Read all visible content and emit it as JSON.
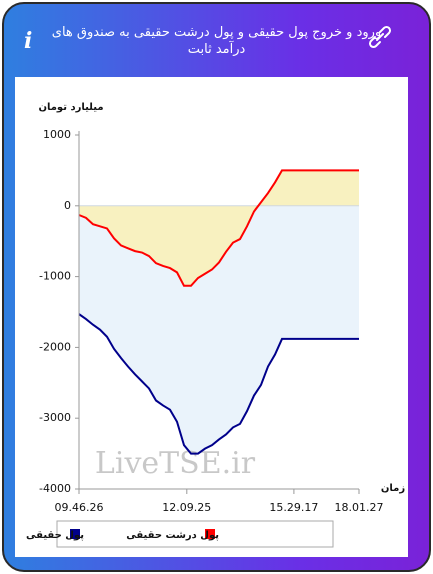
{
  "chart_data": {
    "type": "line",
    "title": "ورود و خروج پول حقیقی و پول درشت حقیقی به صندوق های درآمد ثابت",
    "ylabel": "میلیارد تومان",
    "xlabel": "زمان",
    "watermark": "LiveTSE.ir",
    "xlim": [
      0,
      40
    ],
    "xticks": [
      {
        "value": 0,
        "label": "09.46.26"
      },
      {
        "value": 15.4,
        "label": "12.09.25"
      },
      {
        "value": 30.7,
        "label": "15.29.17"
      },
      {
        "value": 40,
        "label": "18.01.27"
      }
    ],
    "ylim": [
      -4000,
      1000
    ],
    "yticks": [
      1000,
      0,
      -1000,
      -2000,
      -3000,
      -4000
    ],
    "series": [
      {
        "name": "پول حقیقی",
        "color": "#00008b",
        "fill": "#eaf3fb",
        "values": [
          -1530,
          -1600,
          -1680,
          -1750,
          -1850,
          -2020,
          -2150,
          -2270,
          -2380,
          -2480,
          -2580,
          -2750,
          -2820,
          -2880,
          -3050,
          -3380,
          -3500,
          -3500,
          -3430,
          -3380,
          -3300,
          -3230,
          -3130,
          -3080,
          -2900,
          -2680,
          -2530,
          -2270,
          -2100,
          -1880,
          -1880,
          -1880,
          -1880,
          -1880,
          -1880,
          -1880,
          -1880,
          -1880,
          -1880,
          -1880,
          -1880
        ]
      },
      {
        "name": "پول درشت حقیقی",
        "color": "#ff0000",
        "fill": "#f8f1c0",
        "values": [
          -130,
          -170,
          -260,
          -290,
          -320,
          -460,
          -560,
          -600,
          -640,
          -660,
          -710,
          -810,
          -850,
          -880,
          -940,
          -1130,
          -1130,
          -1020,
          -960,
          -900,
          -800,
          -650,
          -520,
          -470,
          -290,
          -80,
          50,
          180,
          330,
          500,
          500,
          500,
          500,
          500,
          500,
          500,
          500,
          500,
          500,
          500,
          500
        ]
      }
    ]
  }
}
